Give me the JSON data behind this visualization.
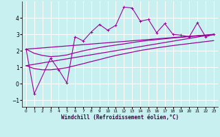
{
  "xlabel": "Windchill (Refroidissement éolien,°C)",
  "xlim": [
    -0.5,
    23.5
  ],
  "ylim": [
    -1.4,
    5.0
  ],
  "bg_color": "#c8f0f0",
  "line_color": "#990099",
  "grid_color": "#ffffff",
  "xticks": [
    0,
    1,
    2,
    3,
    4,
    5,
    6,
    7,
    8,
    9,
    10,
    11,
    12,
    13,
    14,
    15,
    16,
    17,
    18,
    19,
    20,
    21,
    22,
    23
  ],
  "yticks": [
    -1,
    0,
    1,
    2,
    3,
    4
  ],
  "main_x": [
    0,
    1,
    3,
    4,
    5,
    6,
    7,
    8,
    9,
    10,
    11,
    12,
    13,
    14,
    15,
    16,
    17,
    18,
    19,
    20,
    21,
    22,
    23
  ],
  "main_y": [
    2.1,
    -0.6,
    1.55,
    0.85,
    0.05,
    2.85,
    2.6,
    3.15,
    3.6,
    3.25,
    3.55,
    4.65,
    4.6,
    3.8,
    3.9,
    3.1,
    3.65,
    3.0,
    2.95,
    2.85,
    3.7,
    2.85,
    3.0
  ],
  "line1_x": [
    0,
    23
  ],
  "line1_y": [
    2.1,
    3.0
  ],
  "line2_x": [
    0,
    23
  ],
  "line2_y": [
    1.1,
    3.0
  ],
  "curve1_x": [
    0,
    1,
    2,
    3,
    4,
    5,
    6,
    7,
    8,
    9,
    10,
    11,
    12,
    13,
    14,
    15,
    16,
    17,
    18,
    19,
    20,
    21,
    22,
    23
  ],
  "curve1_y": [
    2.1,
    1.85,
    1.72,
    1.65,
    1.68,
    1.75,
    1.88,
    2.0,
    2.1,
    2.2,
    2.28,
    2.35,
    2.42,
    2.5,
    2.57,
    2.63,
    2.68,
    2.73,
    2.78,
    2.82,
    2.86,
    2.9,
    2.94,
    2.97
  ],
  "curve2_x": [
    0,
    1,
    2,
    3,
    4,
    5,
    6,
    7,
    8,
    9,
    10,
    11,
    12,
    13,
    14,
    15,
    16,
    17,
    18,
    19,
    20,
    21,
    22,
    23
  ],
  "curve2_y": [
    1.1,
    0.92,
    0.85,
    0.85,
    0.9,
    0.98,
    1.1,
    1.22,
    1.35,
    1.47,
    1.6,
    1.72,
    1.82,
    1.92,
    2.02,
    2.1,
    2.18,
    2.25,
    2.32,
    2.38,
    2.44,
    2.5,
    2.56,
    2.62
  ]
}
